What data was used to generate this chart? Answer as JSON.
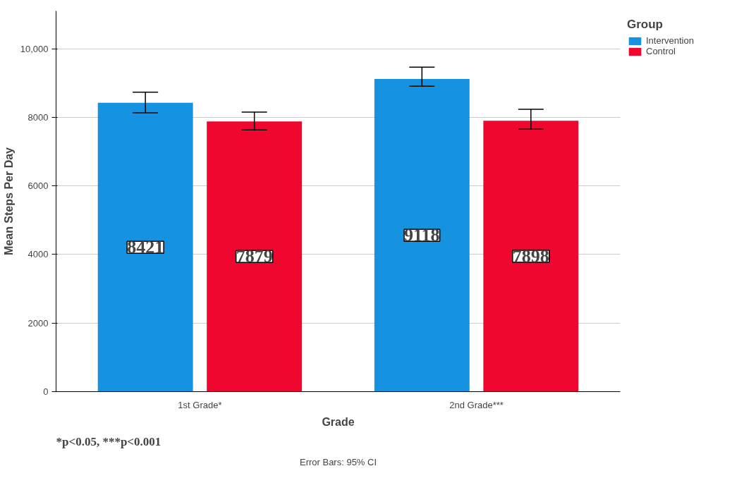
{
  "chart_data": {
    "type": "bar",
    "xlabel": "Grade",
    "ylabel": "Mean Steps Per Day",
    "legend_title": "Group",
    "categories": [
      "1st Grade*",
      "2nd Grade***"
    ],
    "series": [
      {
        "name": "Intervention",
        "color": "#1593e0",
        "values": [
          8421,
          9118
        ],
        "errors": [
          [
            8130,
            8730
          ],
          [
            8905,
            9460
          ]
        ]
      },
      {
        "name": "Control",
        "color": "#f0072f",
        "values": [
          7879,
          7898
        ],
        "errors": [
          [
            7630,
            8150
          ],
          [
            7650,
            8230
          ]
        ]
      }
    ],
    "ylim": [
      0,
      11100
    ],
    "yticks": [
      0,
      2000,
      4000,
      6000,
      8000,
      {
        "value": 10000,
        "label": "10,000"
      }
    ],
    "grid": "y",
    "legend": "top right",
    "data_labels": true,
    "annotations": [
      "*p<0.05, ***p<0.001",
      "Error Bars: 95% CI"
    ]
  }
}
